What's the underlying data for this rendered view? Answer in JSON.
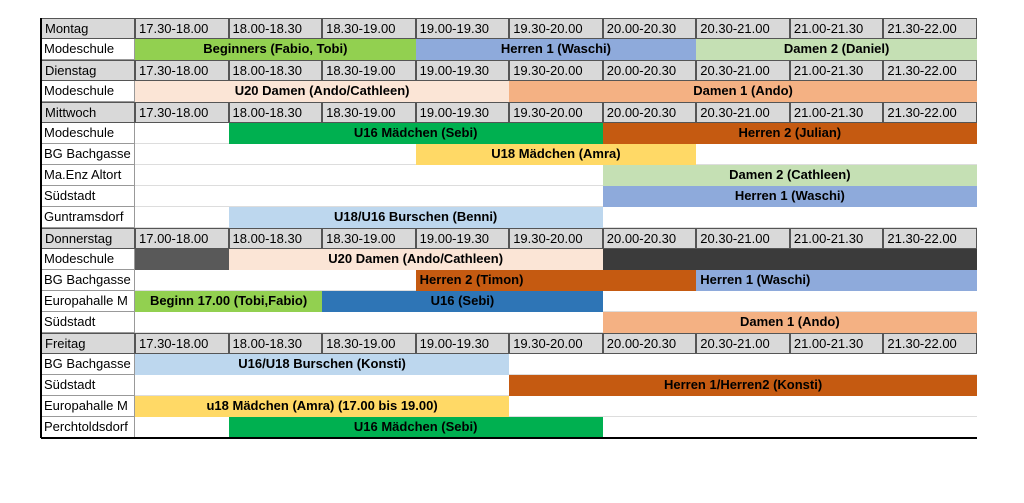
{
  "rows": [
    {
      "label": "Montag",
      "times": [
        "17.30-18.00",
        "18.00-18.30",
        "18.30-19.00",
        "19.00-19.30",
        "19.30-20.00",
        "20.00-20.30",
        "20.30-21.00",
        "21.00-21.30",
        "21.30-22.00"
      ]
    },
    {
      "label": "Modeschule",
      "cells": [
        {
          "text": "Beginners (Fabio, Tobi)",
          "span": 3,
          "color": "#92d050"
        },
        {
          "text": "Herren 1 (Waschi)",
          "span": 3,
          "color": "#8eaadb"
        },
        {
          "text": "Damen 2 (Daniel)",
          "span": 3,
          "color": "#c5e0b4"
        }
      ]
    },
    {
      "label": "Dienstag",
      "times": [
        "17.30-18.00",
        "18.00-18.30",
        "18.30-19.00",
        "19.00-19.30",
        "19.30-20.00",
        "20.00-20.30",
        "20.30-21.00",
        "21.00-21.30",
        "21.30-22.00"
      ]
    },
    {
      "label": "Modeschule",
      "cells": [
        {
          "text": "U20 Damen (Ando/Cathleen)",
          "span": 4,
          "color": "#fbe5d6"
        },
        {
          "text": "Damen 1 (Ando)",
          "span": 5,
          "color": "#f4b183"
        }
      ]
    },
    {
      "label": "Mittwoch",
      "times": [
        "17.30-18.00",
        "18.00-18.30",
        "18.30-19.00",
        "19.00-19.30",
        "19.30-20.00",
        "20.00-20.30",
        "20.30-21.00",
        "21.00-21.30",
        "21.30-22.00"
      ]
    },
    {
      "label": "Modeschule",
      "cells": [
        {
          "text": null,
          "span": 1
        },
        {
          "text": "U16 Mädchen (Sebi)",
          "span": 4,
          "color": "#00b050"
        },
        {
          "text": "Herren 2 (Julian)",
          "span": 4,
          "color": "#c55a11"
        }
      ]
    },
    {
      "label": "BG Bachgasse",
      "cells": [
        {
          "text": null,
          "span": 3
        },
        {
          "text": "U18 Mädchen (Amra)",
          "span": 3,
          "color": "#ffd966"
        },
        {
          "text": null,
          "span": 3
        }
      ]
    },
    {
      "label": "Ma.Enz Altort",
      "cells": [
        {
          "text": null,
          "span": 5
        },
        {
          "text": "Damen 2 (Cathleen)",
          "span": 4,
          "color": "#c5e0b4"
        }
      ]
    },
    {
      "label": "Südstadt",
      "cells": [
        {
          "text": null,
          "span": 5
        },
        {
          "text": "Herren 1 (Waschi)",
          "span": 4,
          "color": "#8eaadb"
        }
      ]
    },
    {
      "label": "Guntramsdorf",
      "cells": [
        {
          "text": null,
          "span": 1
        },
        {
          "text": "U18/U16 Burschen (Benni)",
          "span": 4,
          "color": "#bdd7ee"
        },
        {
          "text": null,
          "span": 4
        }
      ]
    },
    {
      "label": "Donnerstag",
      "times": [
        "17.00-18.00",
        "18.00-18.30",
        "18.30-19.00",
        "19.00-19.30",
        "19.30-20.00",
        "20.00-20.30",
        "20.30-21.00",
        "21.00-21.30",
        "21.30-22.00"
      ]
    },
    {
      "label": "Modeschule",
      "cells": [
        {
          "text": null,
          "span": 1,
          "color": "#595959"
        },
        {
          "text": "U20 Damen (Ando/Cathleen)",
          "span": 4,
          "color": "#fbe5d6"
        },
        {
          "text": null,
          "span": 4,
          "color": "#3b3b3b"
        }
      ]
    },
    {
      "label": "BG Bachgasse",
      "cells": [
        {
          "text": null,
          "span": 3
        },
        {
          "text": "Herren 2 (Timon)",
          "span": 3,
          "color": "#c55a11",
          "align": "left"
        },
        {
          "text": "Herren 1 (Waschi)",
          "span": 3,
          "color": "#8eaadb",
          "align": "left"
        }
      ]
    },
    {
      "label": "Europahalle M",
      "cells": [
        {
          "text": "Beginn 17.00 (Tobi,Fabio)",
          "span": 2,
          "color": "#92d050"
        },
        {
          "text": "U16 (Sebi)",
          "span": 3,
          "color": "#2e75b6"
        },
        {
          "text": null,
          "span": 4
        }
      ]
    },
    {
      "label": "Südstadt",
      "cells": [
        {
          "text": null,
          "span": 5
        },
        {
          "text": "Damen 1 (Ando)",
          "span": 4,
          "color": "#f4b183"
        }
      ]
    },
    {
      "label": "Freitag",
      "times": [
        "17.30-18.00",
        "18.00-18.30",
        "18.30-19.00",
        "19.00-19.30",
        "19.30-20.00",
        "20.00-20.30",
        "20.30-21.00",
        "21.00-21.30",
        "21.30-22.00"
      ]
    },
    {
      "label": "BG Bachgasse",
      "cells": [
        {
          "text": "U16/U18 Burschen (Konsti)",
          "span": 4,
          "color": "#bdd7ee"
        },
        {
          "text": null,
          "span": 5
        }
      ]
    },
    {
      "label": "Südstadt",
      "cells": [
        {
          "text": null,
          "span": 4
        },
        {
          "text": "Herren 1/Herren2 (Konsti)",
          "span": 5,
          "color": "#c55a11"
        }
      ]
    },
    {
      "label": "Europahalle M",
      "cells": [
        {
          "text": "u18 Mädchen (Amra) (17.00 bis 19.00)",
          "span": 4,
          "color": "#ffd966"
        },
        {
          "text": null,
          "span": 5
        }
      ]
    },
    {
      "label": "Perchtoldsdorf",
      "cells": [
        {
          "text": null,
          "span": 1
        },
        {
          "text": "U16 Mädchen (Sebi)",
          "span": 4,
          "color": "#00b050"
        },
        {
          "text": null,
          "span": 4
        }
      ]
    }
  ]
}
